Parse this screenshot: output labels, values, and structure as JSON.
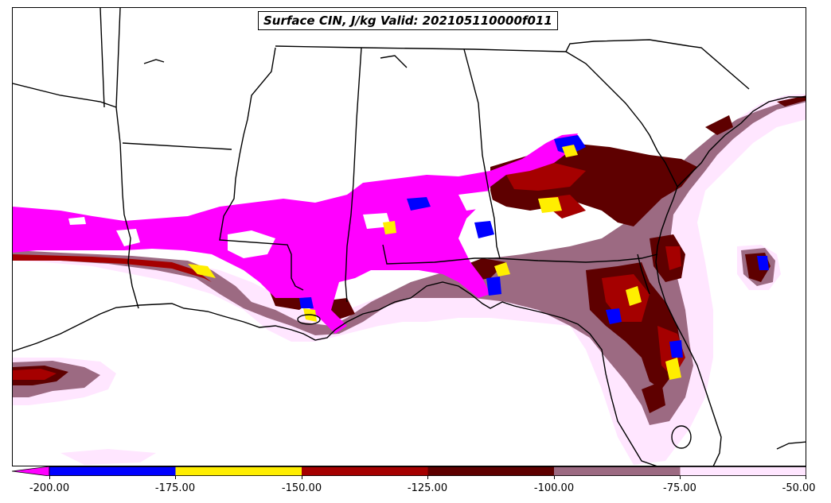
{
  "title": "Surface CIN, J/kg Valid: 202105110000f011",
  "colorbar": {
    "extend": "min",
    "levels": [
      {
        "from": -200.0,
        "to": -175.0,
        "color": "#0000ff"
      },
      {
        "from": -175.0,
        "to": -150.0,
        "color": "#ffee00"
      },
      {
        "from": -150.0,
        "to": -125.0,
        "color": "#a50000"
      },
      {
        "from": -125.0,
        "to": -100.0,
        "color": "#5e0000"
      },
      {
        "from": -100.0,
        "to": -75.0,
        "color": "#9c6a82"
      },
      {
        "from": -75.0,
        "to": -50.0,
        "color": "#ffe6ff"
      }
    ],
    "below_min_color": "#ff00ff",
    "tick_labels": [
      "-200.00",
      "-175.00",
      "-150.00",
      "-125.00",
      "-100.00",
      "-75.00",
      "-50.00"
    ]
  },
  "map": {
    "region": "Southeastern United States and northern Gulf of Mexico",
    "field": "Surface CIN",
    "units": "J/kg",
    "fill_colors": {
      "extreme": "#ff00ff",
      "blue": "#0000ff",
      "yellow": "#ffee00",
      "red": "#a50000",
      "darkred": "#5e0000",
      "mauve": "#9c6a82",
      "pink": "#ffe6ff"
    },
    "boundary_color": "#000000"
  }
}
